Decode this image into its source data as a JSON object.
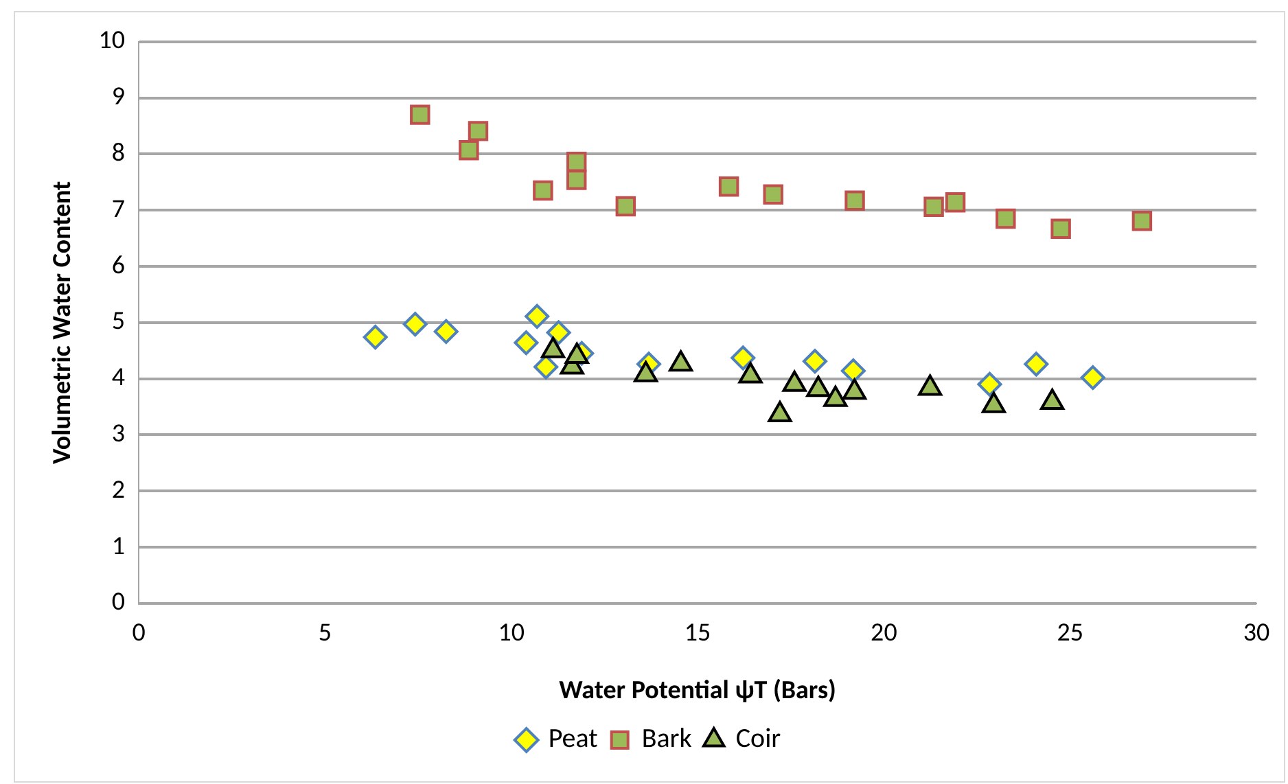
{
  "chart_data": {
    "type": "scatter",
    "xlabel": "Water Potential ψT (Bars)",
    "ylabel": "Volumetric Water Content",
    "xlim": [
      0,
      30
    ],
    "xticks": [
      0,
      5,
      10,
      15,
      20,
      25,
      30
    ],
    "ylim": [
      0,
      10
    ],
    "yticks": [
      0,
      1,
      2,
      3,
      4,
      5,
      6,
      7,
      8,
      9,
      10
    ],
    "grid": "y",
    "legend": "bottom",
    "series": [
      {
        "name": "Peat",
        "color": "#ffff00",
        "marker": "diamond",
        "x": [
          6.35,
          7.42,
          8.25,
          10.69,
          10.4,
          11.27,
          10.93,
          11.89,
          13.69,
          16.22,
          18.15,
          19.18,
          22.84,
          24.09,
          25.61
        ],
        "values": [
          4.74,
          4.97,
          4.84,
          5.11,
          4.64,
          4.82,
          4.21,
          4.45,
          4.26,
          4.37,
          4.31,
          4.14,
          3.9,
          4.26,
          4.02
        ]
      },
      {
        "name": "Bark",
        "color": "#9bbb59",
        "marker": "square",
        "x": [
          7.55,
          8.86,
          9.11,
          10.85,
          11.75,
          11.75,
          13.07,
          15.84,
          17.03,
          19.22,
          21.34,
          21.92,
          23.27,
          24.75,
          26.93
        ],
        "values": [
          8.7,
          8.07,
          8.41,
          7.35,
          7.86,
          7.54,
          7.07,
          7.42,
          7.28,
          7.17,
          7.06,
          7.14,
          6.85,
          6.67,
          6.81
        ]
      },
      {
        "name": "Coir",
        "color": "#9bbb59",
        "marker": "triangle",
        "x": [
          11.12,
          11.63,
          11.76,
          13.61,
          14.55,
          16.42,
          17.21,
          17.6,
          18.24,
          18.7,
          19.21,
          21.24,
          22.95,
          24.52
        ],
        "values": [
          4.5,
          4.21,
          4.4,
          4.07,
          4.26,
          4.05,
          3.36,
          3.9,
          3.81,
          3.63,
          3.76,
          3.83,
          3.52,
          3.58
        ]
      }
    ]
  }
}
